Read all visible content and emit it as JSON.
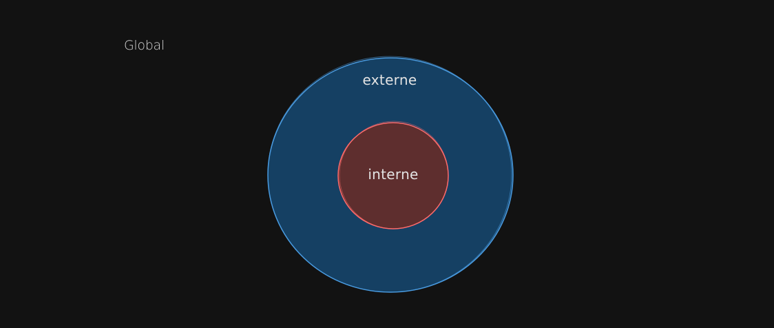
{
  "diagram": {
    "global_label": "Global",
    "outer_label": "externe",
    "inner_label": "interne",
    "colors": {
      "background": "#121212",
      "outer_fill": "#154063",
      "outer_stroke": "#4a9be0",
      "inner_fill": "#5e2e2e",
      "inner_stroke": "#ff6b6b",
      "text": "#e3e3e3"
    }
  }
}
